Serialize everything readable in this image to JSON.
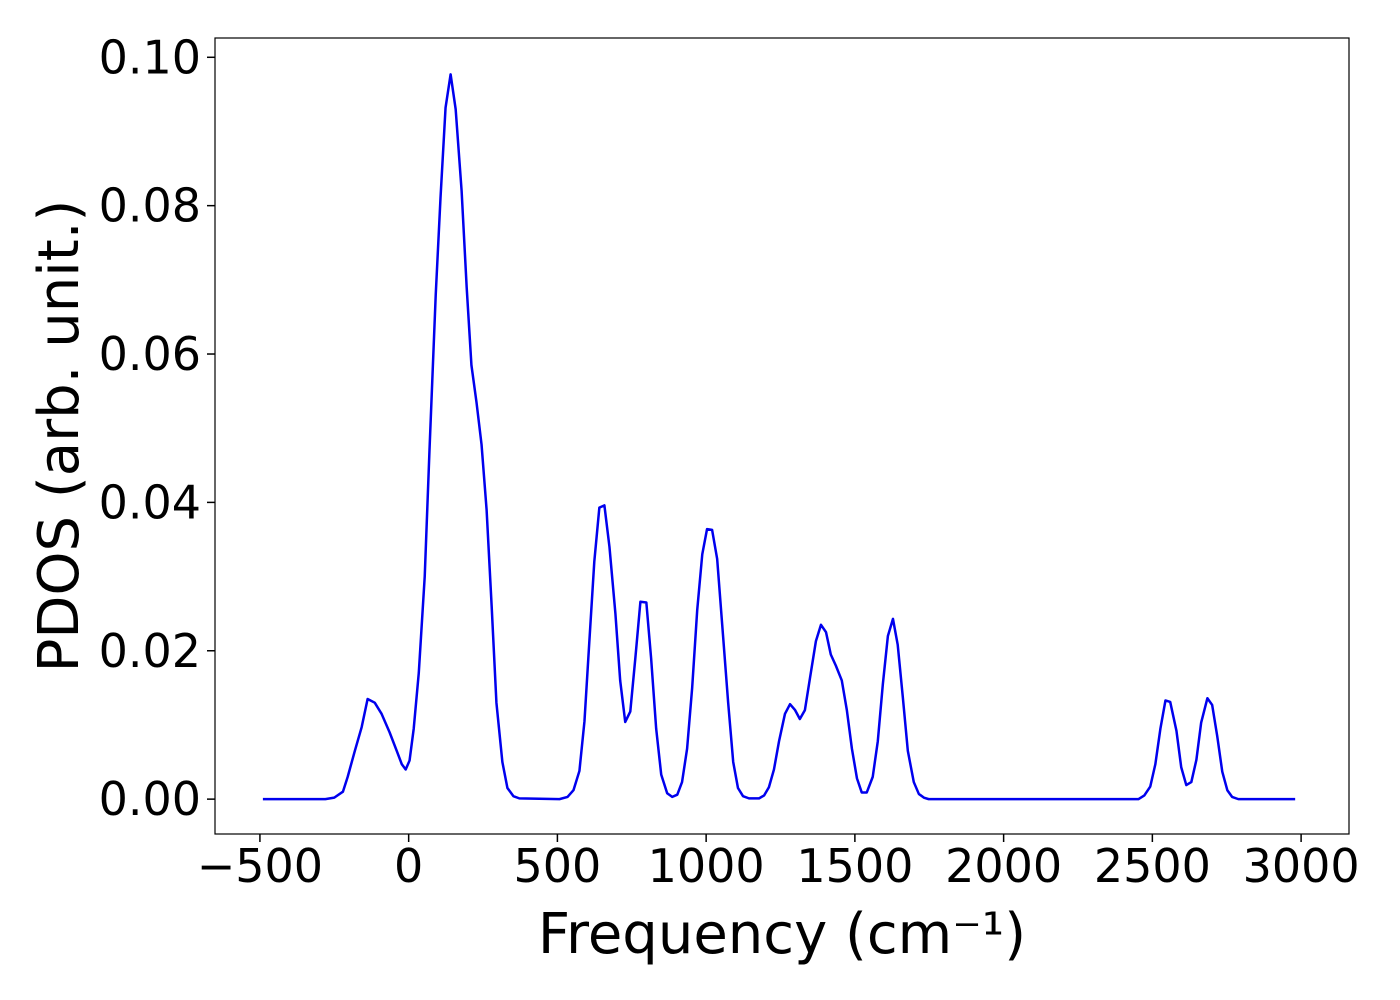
{
  "chart_data": {
    "type": "line",
    "xlabel": "Frequency (cm⁻¹)",
    "ylabel": "PDOS (arb. unit.)",
    "xlim": [
      -651,
      3161
    ],
    "ylim": [
      -0.0047,
      0.1026
    ],
    "xticks": [
      {
        "value": -500,
        "label": "−500"
      },
      0,
      500,
      1000,
      1500,
      2000,
      2500,
      3000
    ],
    "yticks": [
      {
        "value": 0,
        "label": "0.00"
      },
      {
        "value": 0.02,
        "label": "0.02"
      },
      {
        "value": 0.04,
        "label": "0.04"
      },
      {
        "value": 0.06,
        "label": "0.06"
      },
      {
        "value": 0.08,
        "label": "0.08"
      },
      {
        "value": 0.1,
        "label": "0.10"
      }
    ],
    "grid": false,
    "series": [
      {
        "color": "#0000ee",
        "x": [
          -490,
          -280,
          -250,
          -221,
          -205,
          -181,
          -158,
          -138,
          -114,
          -91,
          -64,
          -40,
          -23,
          -10,
          3,
          17,
          34,
          54,
          70,
          91,
          107,
          124,
          141,
          158,
          178,
          195,
          211,
          228,
          245,
          262,
          279,
          295,
          315,
          332,
          352,
          372,
          507,
          534,
          554,
          574,
          591,
          607,
          624,
          641,
          658,
          675,
          695,
          711,
          728,
          745,
          762,
          779,
          799,
          815,
          832,
          849,
          869,
          886,
          903,
          919,
          936,
          953,
          970,
          987,
          1003,
          1020,
          1037,
          1054,
          1074,
          1091,
          1107,
          1124,
          1144,
          1178,
          1195,
          1211,
          1228,
          1245,
          1265,
          1282,
          1299,
          1315,
          1332,
          1349,
          1369,
          1386,
          1403,
          1419,
          1436,
          1456,
          1473,
          1490,
          1507,
          1523,
          1540,
          1560,
          1577,
          1594,
          1611,
          1628,
          1644,
          1661,
          1678,
          1698,
          1715,
          1732,
          1748,
          2453,
          2473,
          2493,
          2510,
          2527,
          2544,
          2560,
          2581,
          2597,
          2614,
          2631,
          2648,
          2664,
          2685,
          2701,
          2718,
          2735,
          2752,
          2768,
          2789,
          2980
        ],
        "values": [
          0,
          0,
          0.0002,
          0.001,
          0.003,
          0.0065,
          0.0097,
          0.0135,
          0.013,
          0.0115,
          0.009,
          0.0065,
          0.0047,
          0.004,
          0.0052,
          0.0095,
          0.017,
          0.03,
          0.047,
          0.068,
          0.081,
          0.0932,
          0.0977,
          0.093,
          0.082,
          0.069,
          0.0585,
          0.0535,
          0.0478,
          0.039,
          0.026,
          0.013,
          0.005,
          0.0015,
          0.0004,
          0.0001,
          0,
          0.0003,
          0.0012,
          0.0038,
          0.0105,
          0.021,
          0.032,
          0.0393,
          0.0396,
          0.034,
          0.025,
          0.016,
          0.0104,
          0.0118,
          0.019,
          0.0266,
          0.0265,
          0.019,
          0.0095,
          0.0033,
          0.0008,
          0.0003,
          0.0006,
          0.0023,
          0.0068,
          0.015,
          0.0255,
          0.033,
          0.0364,
          0.0363,
          0.0324,
          0.0235,
          0.013,
          0.005,
          0.0015,
          0.0004,
          0.0001,
          0.0001,
          0.0005,
          0.0016,
          0.004,
          0.0078,
          0.0115,
          0.0128,
          0.012,
          0.0108,
          0.012,
          0.0163,
          0.0213,
          0.0235,
          0.0225,
          0.0195,
          0.018,
          0.016,
          0.012,
          0.0068,
          0.0028,
          0.0009,
          0.0009,
          0.003,
          0.0078,
          0.0155,
          0.022,
          0.0243,
          0.0208,
          0.0138,
          0.0065,
          0.0023,
          0.0007,
          0.0002,
          0,
          0,
          0.0005,
          0.0017,
          0.0047,
          0.0095,
          0.0133,
          0.0131,
          0.0092,
          0.0043,
          0.0019,
          0.0023,
          0.0053,
          0.0103,
          0.0136,
          0.0127,
          0.0085,
          0.0037,
          0.0012,
          0.0003,
          0,
          0
        ]
      }
    ]
  }
}
